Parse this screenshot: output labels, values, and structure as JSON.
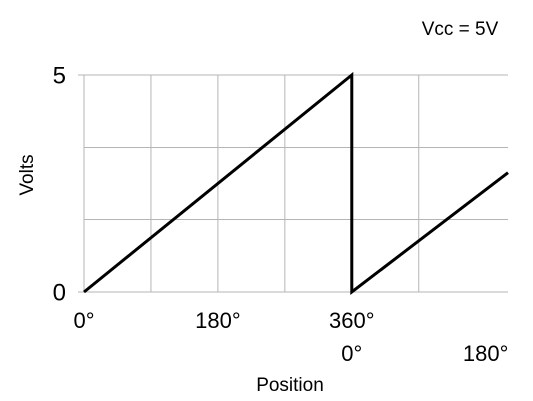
{
  "chart_data": {
    "type": "line",
    "annotation": "Vcc = 5V",
    "xlabel": "Position",
    "ylabel": "Volts",
    "x": [
      0,
      360,
      360,
      570
    ],
    "values": [
      0,
      5,
      0,
      2.75
    ],
    "color": "#000000",
    "xlim": [
      0,
      570
    ],
    "ylim": [
      0,
      5
    ],
    "xticks": [
      {
        "value": 0,
        "label": "0°"
      },
      {
        "value": 180,
        "label": "180°"
      },
      {
        "value": 360,
        "label": "360°"
      }
    ],
    "x2ticks": [
      {
        "value": 360,
        "label": "0°"
      },
      {
        "value": 540,
        "label": "180°"
      }
    ],
    "yticks": [
      0,
      5
    ],
    "xgrid": [
      0,
      90,
      180,
      270,
      360,
      450
    ],
    "ygrid": [
      0,
      1.67,
      3.33,
      5
    ],
    "grid": true
  }
}
